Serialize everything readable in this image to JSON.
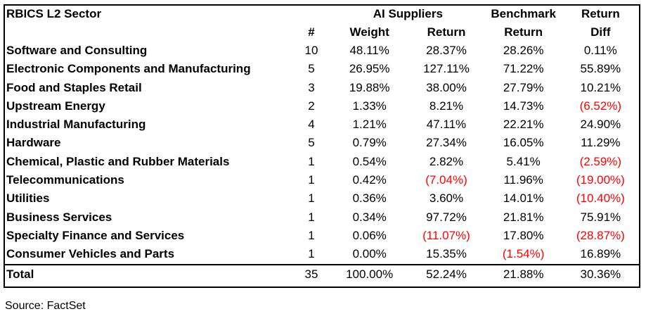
{
  "header": {
    "sector": "RBICS L2 Sector",
    "ai_suppliers": "AI Suppliers",
    "benchmark_line1": "Benchmark",
    "return_line1": "Return",
    "count": "#",
    "weight": "Weight",
    "return": "Return",
    "benchmark_line2": "Return",
    "diff_line2": "Diff"
  },
  "rows": [
    {
      "sector": "Software and Consulting",
      "count": "10",
      "weight": "48.11%",
      "return": "28.37%",
      "benchmark": "28.26%",
      "diff": "0.11%"
    },
    {
      "sector": "Electronic Components and Manufacturing",
      "count": "5",
      "weight": "26.95%",
      "return": "127.11%",
      "benchmark": "71.22%",
      "diff": "55.89%"
    },
    {
      "sector": "Food and Staples Retail",
      "count": "3",
      "weight": "19.88%",
      "return": "38.00%",
      "benchmark": "27.79%",
      "diff": "10.21%"
    },
    {
      "sector": "Upstream Energy",
      "count": "2",
      "weight": "1.33%",
      "return": "8.21%",
      "benchmark": "14.73%",
      "diff": "(6.52%)"
    },
    {
      "sector": "Industrial Manufacturing",
      "count": "4",
      "weight": "1.21%",
      "return": "47.11%",
      "benchmark": "22.21%",
      "diff": "24.90%"
    },
    {
      "sector": "Hardware",
      "count": "5",
      "weight": "0.79%",
      "return": "27.34%",
      "benchmark": "16.05%",
      "diff": "11.29%"
    },
    {
      "sector": "Chemical, Plastic and Rubber Materials",
      "count": "1",
      "weight": "0.54%",
      "return": "2.82%",
      "benchmark": "5.41%",
      "diff": "(2.59%)"
    },
    {
      "sector": "Telecommunications",
      "count": "1",
      "weight": "0.42%",
      "return": "(7.04%)",
      "benchmark": "11.96%",
      "diff": "(19.00%)"
    },
    {
      "sector": "Utilities",
      "count": "1",
      "weight": "0.36%",
      "return": "3.60%",
      "benchmark": "14.01%",
      "diff": "(10.40%)"
    },
    {
      "sector": "Business Services",
      "count": "1",
      "weight": "0.34%",
      "return": "97.72%",
      "benchmark": "21.81%",
      "diff": "75.91%"
    },
    {
      "sector": "Specialty Finance and Services",
      "count": "1",
      "weight": "0.06%",
      "return": "(11.07%)",
      "benchmark": "17.80%",
      "diff": "(28.87%)"
    },
    {
      "sector": "Consumer Vehicles and Parts",
      "count": "1",
      "weight": "0.00%",
      "return": "15.35%",
      "benchmark": "(1.54%)",
      "diff": "16.89%"
    }
  ],
  "total": {
    "sector": "Total",
    "count": "35",
    "weight": "100.00%",
    "return": "52.24%",
    "benchmark": "21.88%",
    "diff": "30.36%"
  },
  "source": "Source: FactSet",
  "colors": {
    "negative": "#ff0000",
    "text": "#000000"
  }
}
